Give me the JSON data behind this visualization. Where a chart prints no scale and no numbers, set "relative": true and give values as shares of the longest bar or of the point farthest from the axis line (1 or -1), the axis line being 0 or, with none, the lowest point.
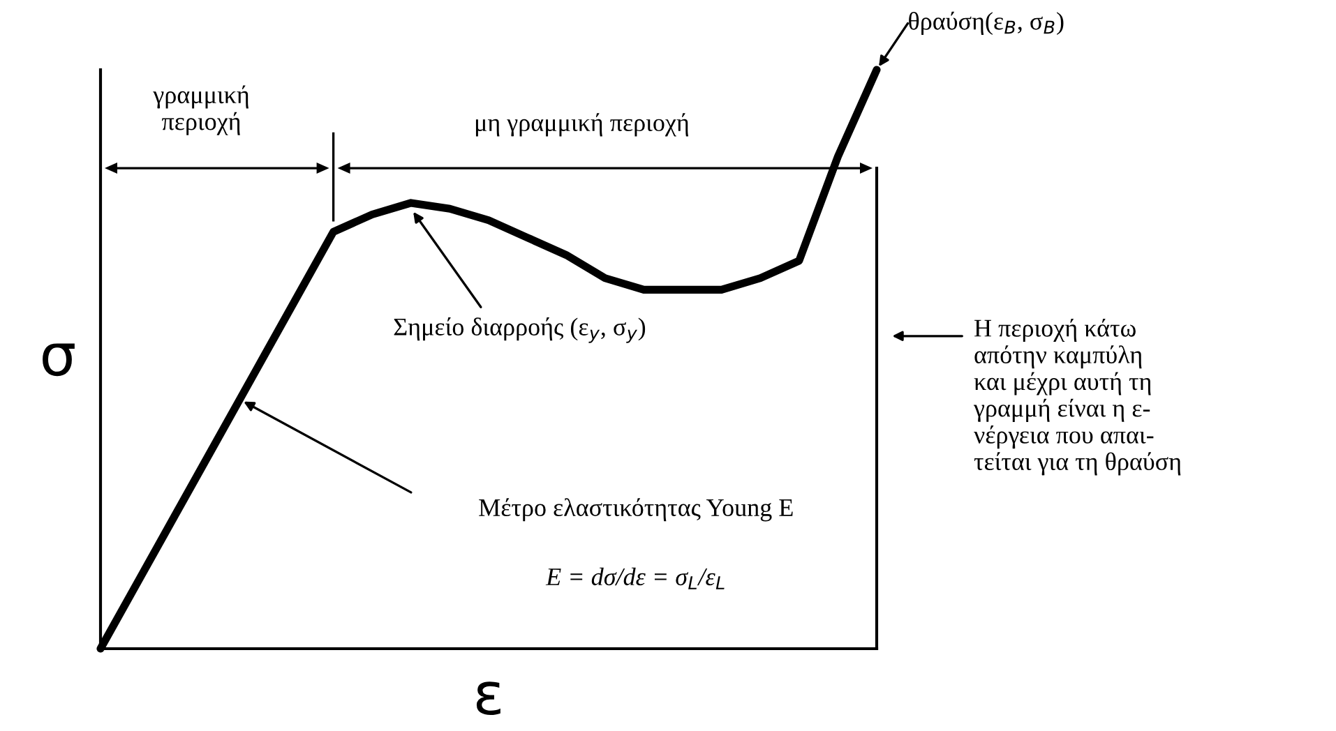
{
  "chart_data": {
    "type": "line",
    "relative": true,
    "xlabel": "ε",
    "ylabel": "σ",
    "categories": [
      null,
      null,
      null,
      null,
      null,
      null,
      null,
      null,
      null,
      null,
      null,
      null,
      null,
      null,
      null,
      null,
      null,
      null,
      null,
      null,
      null
    ],
    "series": [
      {
        "color": "#000000",
        "values": [
          0,
          0.12,
          0.24,
          0.36,
          0.48,
          0.6,
          0.72,
          0.75,
          0.77,
          0.76,
          0.74,
          0.71,
          0.68,
          0.64,
          0.62,
          0.62,
          0.62,
          0.64,
          0.67,
          0.85,
          1.0
        ]
      }
    ],
    "marker": "none",
    "line_style": "solid",
    "annotations": [
      "γραμμική\nπεριοχή",
      "μη γραμμική περιοχή",
      "θραύση(ε$_{B}$, σ$_{B}$)",
      "Σημείο διαρροής (ε$_{y}$, σ$_{y}$)",
      "Μέτρο ελαστικότητας Young E",
      "E = dσ/dε = σ$_{L}$/ε$_{L}$",
      "Η περιοχή κάτω\nαπότην καμπύλη\nκαι μέχρι αυτή τη\nγραμμή είναι η ε-\nνέργεια που απαι-\nτείται για τη θραύση"
    ]
  }
}
